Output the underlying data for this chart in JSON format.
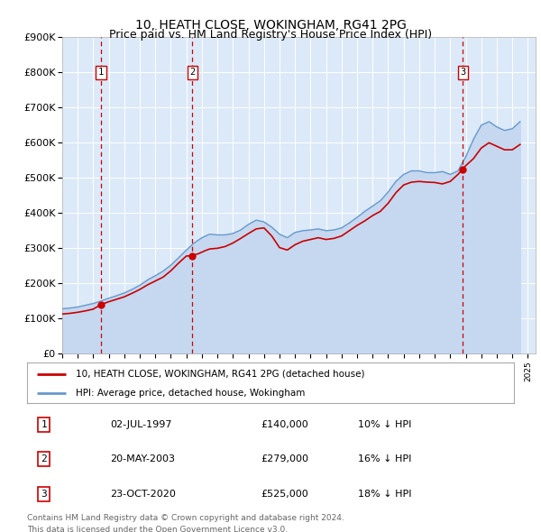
{
  "title": "10, HEATH CLOSE, WOKINGHAM, RG41 2PG",
  "subtitle": "Price paid vs. HM Land Registry's House Price Index (HPI)",
  "ylim": [
    0,
    900000
  ],
  "yticks": [
    0,
    100000,
    200000,
    300000,
    400000,
    500000,
    600000,
    700000,
    800000,
    900000
  ],
  "ytick_labels": [
    "£0",
    "£100K",
    "£200K",
    "£300K",
    "£400K",
    "£500K",
    "£600K",
    "£700K",
    "£800K",
    "£900K"
  ],
  "xlim_start": 1995.0,
  "xlim_end": 2025.5,
  "background_color": "#ffffff",
  "plot_bg_color": "#dce9f8",
  "grid_color": "#ffffff",
  "sale_line_color": "#cc0000",
  "hpi_line_color": "#6699cc",
  "hpi_fill_color": "#c5d8f0",
  "sale_marker_color": "#cc0000",
  "vline_color": "#cc0000",
  "legend_label_sale": "10, HEATH CLOSE, WOKINGHAM, RG41 2PG (detached house)",
  "legend_label_hpi": "HPI: Average price, detached house, Wokingham",
  "transactions": [
    {
      "num": 1,
      "date": "02-JUL-1997",
      "price": 140000,
      "hpi_pct": "10%",
      "year": 1997.5
    },
    {
      "num": 2,
      "date": "20-MAY-2003",
      "price": 279000,
      "hpi_pct": "16%",
      "year": 2003.38
    },
    {
      "num": 3,
      "date": "23-OCT-2020",
      "price": 525000,
      "hpi_pct": "18%",
      "year": 2020.81
    }
  ],
  "footer_line1": "Contains HM Land Registry data © Crown copyright and database right 2024.",
  "footer_line2": "This data is licensed under the Open Government Licence v3.0.",
  "hpi_data_x": [
    1995.0,
    1995.5,
    1996.0,
    1996.5,
    1997.0,
    1997.5,
    1998.0,
    1998.5,
    1999.0,
    1999.5,
    2000.0,
    2000.5,
    2001.0,
    2001.5,
    2002.0,
    2002.5,
    2003.0,
    2003.5,
    2004.0,
    2004.5,
    2005.0,
    2005.5,
    2006.0,
    2006.5,
    2007.0,
    2007.5,
    2008.0,
    2008.5,
    2009.0,
    2009.5,
    2010.0,
    2010.5,
    2011.0,
    2011.5,
    2012.0,
    2012.5,
    2013.0,
    2013.5,
    2014.0,
    2014.5,
    2015.0,
    2015.5,
    2016.0,
    2016.5,
    2017.0,
    2017.5,
    2018.0,
    2018.5,
    2019.0,
    2019.5,
    2020.0,
    2020.5,
    2021.0,
    2021.5,
    2022.0,
    2022.5,
    2023.0,
    2023.5,
    2024.0,
    2024.5
  ],
  "hpi_data_y": [
    128000,
    130000,
    133000,
    138000,
    143000,
    150000,
    158000,
    165000,
    173000,
    183000,
    195000,
    210000,
    222000,
    235000,
    252000,
    273000,
    295000,
    315000,
    330000,
    340000,
    338000,
    338000,
    342000,
    352000,
    368000,
    380000,
    375000,
    360000,
    340000,
    330000,
    345000,
    350000,
    352000,
    355000,
    350000,
    352000,
    358000,
    372000,
    388000,
    405000,
    420000,
    435000,
    460000,
    490000,
    510000,
    520000,
    520000,
    515000,
    515000,
    518000,
    510000,
    520000,
    560000,
    610000,
    650000,
    660000,
    645000,
    635000,
    640000,
    660000
  ],
  "sale_data_x": [
    1995.0,
    1995.5,
    1996.0,
    1996.5,
    1997.0,
    1997.5,
    1998.0,
    1998.5,
    1999.0,
    1999.5,
    2000.0,
    2000.5,
    2001.0,
    2001.5,
    2002.0,
    2002.5,
    2003.0,
    2003.38,
    2003.8,
    2004.2,
    2004.5,
    2005.0,
    2005.5,
    2006.0,
    2006.5,
    2007.0,
    2007.5,
    2008.0,
    2008.5,
    2009.0,
    2009.5,
    2010.0,
    2010.5,
    2011.0,
    2011.5,
    2012.0,
    2012.5,
    2013.0,
    2013.5,
    2014.0,
    2014.5,
    2015.0,
    2015.5,
    2016.0,
    2016.5,
    2017.0,
    2017.5,
    2018.0,
    2018.5,
    2019.0,
    2019.5,
    2020.0,
    2020.5,
    2020.81,
    2021.0,
    2021.5,
    2022.0,
    2022.5,
    2023.0,
    2023.5,
    2024.0,
    2024.5
  ],
  "sale_data_y": [
    113000,
    115000,
    118000,
    122000,
    127000,
    140000,
    148000,
    155000,
    162000,
    172000,
    183000,
    196000,
    207000,
    218000,
    236000,
    258000,
    278000,
    279000,
    285000,
    293000,
    298000,
    300000,
    305000,
    315000,
    328000,
    342000,
    355000,
    358000,
    335000,
    302000,
    295000,
    310000,
    320000,
    325000,
    330000,
    325000,
    328000,
    335000,
    350000,
    365000,
    378000,
    393000,
    405000,
    428000,
    458000,
    480000,
    488000,
    490000,
    488000,
    487000,
    483000,
    490000,
    510000,
    525000,
    535000,
    555000,
    585000,
    600000,
    590000,
    580000,
    580000,
    595000
  ]
}
